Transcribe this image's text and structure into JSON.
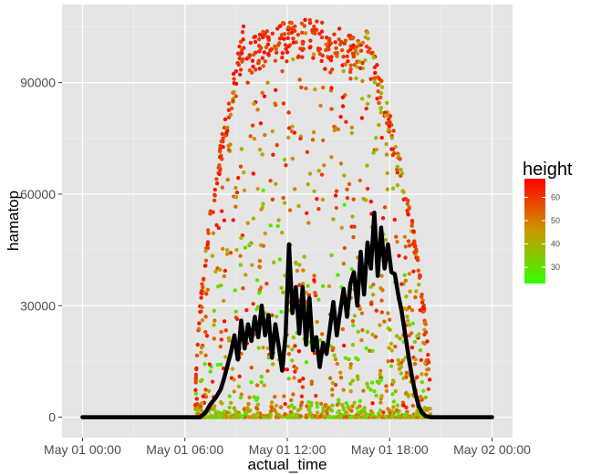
{
  "chart_data": {
    "type": "scatter",
    "xlabel": "actual_time",
    "ylabel": "hamatop",
    "x_ticks": [
      "May 01 00:00",
      "May 01 06:00",
      "May 01 12:00",
      "May 01 18:00",
      "May 02 00:00"
    ],
    "x_tick_hours": [
      0,
      6,
      12,
      18,
      24
    ],
    "xlim_hours": [
      -1.2,
      25.2
    ],
    "y_ticks": [
      0,
      30000,
      60000,
      90000
    ],
    "y_tick_labels": [
      "0",
      "30000",
      "60000",
      "90000"
    ],
    "ylim": [
      -5500,
      111000
    ],
    "grid": true,
    "background": "#e5e5e5",
    "legend": {
      "title": "height",
      "position": "right",
      "ticks": [
        30,
        40,
        50,
        60
      ],
      "range": [
        23,
        68
      ],
      "color_low": "#33ff00",
      "color_mid": "#cc9900",
      "color_high": "#ff0000"
    },
    "series": [
      {
        "type": "points",
        "color_by": "height",
        "description_rule": "points over the day, bounded by an envelope peaking near 107000 at 12:00"
      },
      {
        "type": "line",
        "color": "#000000",
        "points": [
          [
            0,
            0
          ],
          [
            1,
            0
          ],
          [
            2,
            0
          ],
          [
            3,
            0
          ],
          [
            4,
            0
          ],
          [
            5,
            0
          ],
          [
            6,
            0
          ],
          [
            6.3,
            0
          ],
          [
            6.6,
            0
          ],
          [
            6.9,
            0
          ],
          [
            7.2,
            1200
          ],
          [
            7.5,
            3500
          ],
          [
            7.8,
            5200
          ],
          [
            8.1,
            7500
          ],
          [
            8.3,
            10500
          ],
          [
            8.5,
            14000
          ],
          [
            8.7,
            17500
          ],
          [
            8.9,
            22000
          ],
          [
            9.1,
            15500
          ],
          [
            9.3,
            26000
          ],
          [
            9.5,
            18500
          ],
          [
            9.7,
            25000
          ],
          [
            9.9,
            20500
          ],
          [
            10.1,
            27000
          ],
          [
            10.3,
            21500
          ],
          [
            10.5,
            30000
          ],
          [
            10.7,
            22000
          ],
          [
            10.9,
            27500
          ],
          [
            11.1,
            16000
          ],
          [
            11.3,
            25000
          ],
          [
            11.5,
            19000
          ],
          [
            11.7,
            12500
          ],
          [
            11.9,
            22000
          ],
          [
            12.1,
            46500
          ],
          [
            12.3,
            28000
          ],
          [
            12.5,
            35000
          ],
          [
            12.7,
            22500
          ],
          [
            12.9,
            35000
          ],
          [
            13.1,
            19500
          ],
          [
            13.3,
            32000
          ],
          [
            13.5,
            18000
          ],
          [
            13.7,
            21500
          ],
          [
            13.9,
            13500
          ],
          [
            14.1,
            20000
          ],
          [
            14.3,
            17000
          ],
          [
            14.5,
            24000
          ],
          [
            14.7,
            31000
          ],
          [
            14.9,
            22000
          ],
          [
            15.1,
            28500
          ],
          [
            15.3,
            34500
          ],
          [
            15.5,
            27000
          ],
          [
            15.7,
            36000
          ],
          [
            15.9,
            39000
          ],
          [
            16.1,
            30000
          ],
          [
            16.3,
            44500
          ],
          [
            16.5,
            33000
          ],
          [
            16.7,
            47000
          ],
          [
            16.9,
            40000
          ],
          [
            17.1,
            55000
          ],
          [
            17.3,
            38000
          ],
          [
            17.5,
            51000
          ],
          [
            17.7,
            40000
          ],
          [
            17.9,
            46500
          ],
          [
            18.1,
            39000
          ],
          [
            18.3,
            38500
          ],
          [
            18.5,
            33000
          ],
          [
            18.7,
            28500
          ],
          [
            18.9,
            22500
          ],
          [
            19.1,
            16500
          ],
          [
            19.3,
            11000
          ],
          [
            19.5,
            6500
          ],
          [
            19.7,
            3000
          ],
          [
            19.9,
            1200
          ],
          [
            20.1,
            300
          ],
          [
            20.4,
            0
          ],
          [
            21,
            0
          ],
          [
            22,
            0
          ],
          [
            23,
            0
          ],
          [
            24,
            0
          ]
        ]
      }
    ]
  }
}
